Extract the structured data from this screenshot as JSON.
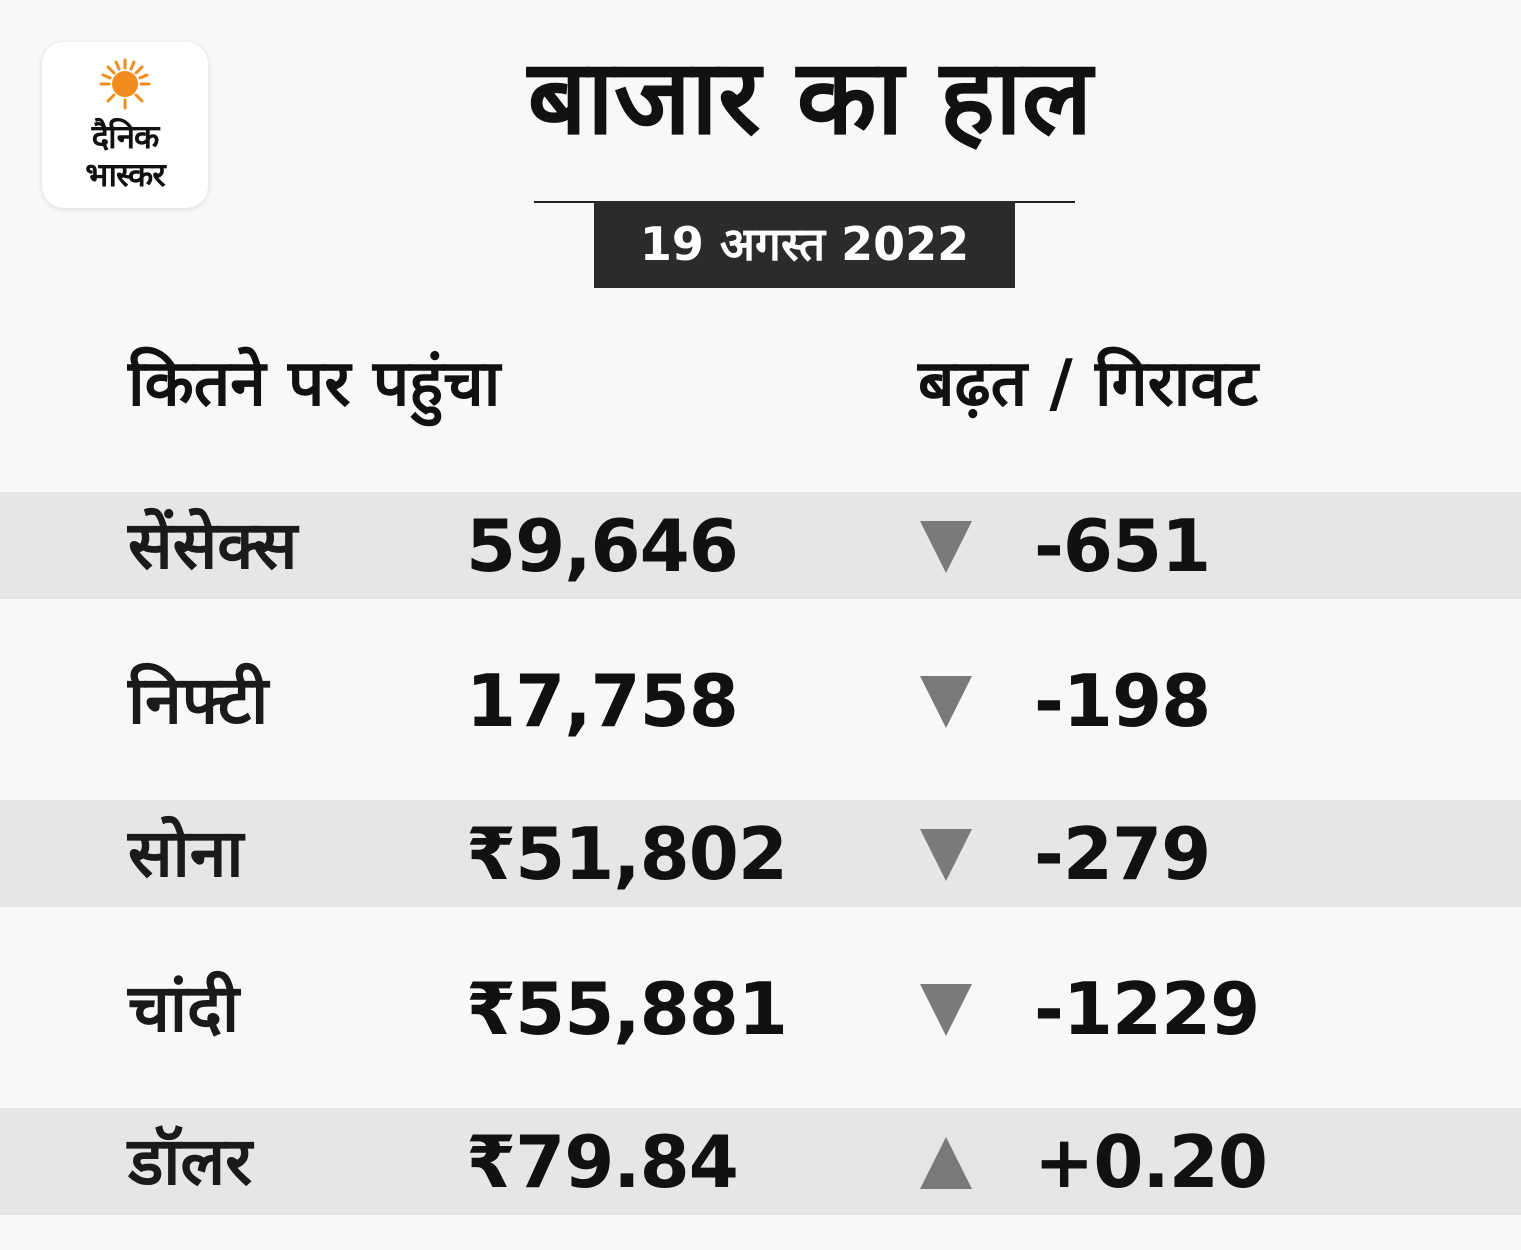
{
  "logo": {
    "line1": "दैनिक",
    "line2": "भास्कर",
    "sun_color": "#f28c1c"
  },
  "title": "बाजार का हाल",
  "date": "19 अगस्त 2022",
  "headers": {
    "level": "कितने पर पहुंचा",
    "change": "बढ़त / गिरावट"
  },
  "rows": [
    {
      "name": "सेंसेक्स",
      "value": "59,646",
      "direction": "down",
      "change": "-651"
    },
    {
      "name": "निफ्टी",
      "value": "17,758",
      "direction": "down",
      "change": "-198"
    },
    {
      "name": "सोना",
      "value": "₹51,802",
      "direction": "down",
      "change": "-279"
    },
    {
      "name": "चांदी",
      "value": "₹55,881",
      "direction": "down",
      "change": "-1229"
    },
    {
      "name": "डॉलर",
      "value": "₹79.84",
      "direction": "up",
      "change": "+0.20"
    }
  ],
  "colors": {
    "background": "#f7f8fa",
    "row_shade": "#e6e6e6",
    "arrow": "#7a7a7a",
    "date_box": "#2b2b2b"
  }
}
